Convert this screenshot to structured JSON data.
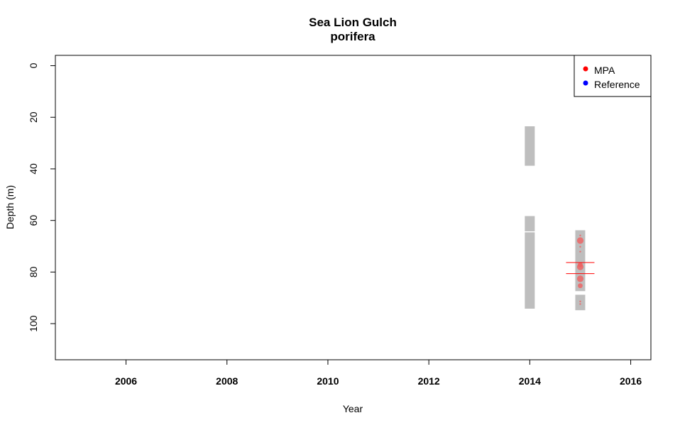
{
  "chart_data": {
    "type": "scatter",
    "title": "Sea Lion Gulch",
    "subtitle": "porifera",
    "xlabel": "Year",
    "ylabel": "Depth (m)",
    "xlim": [
      2004.6,
      2016.4
    ],
    "ylim": [
      114,
      -4
    ],
    "y_reversed": true,
    "x_ticks": [
      2006,
      2008,
      2010,
      2012,
      2014,
      2016
    ],
    "y_ticks": [
      0,
      20,
      40,
      60,
      80,
      100
    ],
    "grid": false,
    "legend_position": "top-right",
    "legend": [
      {
        "label": "MPA",
        "color": "#ff0000"
      },
      {
        "label": "Reference",
        "color": "#0000ff"
      }
    ],
    "survey_ranges": [
      {
        "x": 2014,
        "y_from": 23.5,
        "y_to": 38.8
      },
      {
        "x": 2014,
        "y_from": 58.3,
        "y_to": 64.2
      },
      {
        "x": 2014,
        "y_from": 64.6,
        "y_to": 94.2
      },
      {
        "x": 2015,
        "y_from": 63.8,
        "y_to": 87.4
      },
      {
        "x": 2015,
        "y_from": 88.8,
        "y_to": 94.8
      }
    ],
    "series": [
      {
        "name": "MPA",
        "color": "#f06060",
        "points": [
          {
            "x": 2015,
            "y": 65.8,
            "size": 1
          },
          {
            "x": 2015,
            "y": 67.8,
            "size": 4
          },
          {
            "x": 2015,
            "y": 70.2,
            "size": 1
          },
          {
            "x": 2015,
            "y": 72.1,
            "size": 1
          },
          {
            "x": 2015,
            "y": 77.2,
            "size": 3
          },
          {
            "x": 2015,
            "y": 78.0,
            "size": 4
          },
          {
            "x": 2015,
            "y": 82.6,
            "size": 4
          },
          {
            "x": 2015,
            "y": 85.3,
            "size": 3
          },
          {
            "x": 2015,
            "y": 91.4,
            "size": 1
          },
          {
            "x": 2015,
            "y": 92.4,
            "size": 1
          }
        ],
        "mean_lines": [
          {
            "x": 2015,
            "y": 76.3
          },
          {
            "x": 2015,
            "y": 80.6
          }
        ]
      },
      {
        "name": "Reference",
        "color": "#0000ff",
        "points": []
      }
    ]
  }
}
